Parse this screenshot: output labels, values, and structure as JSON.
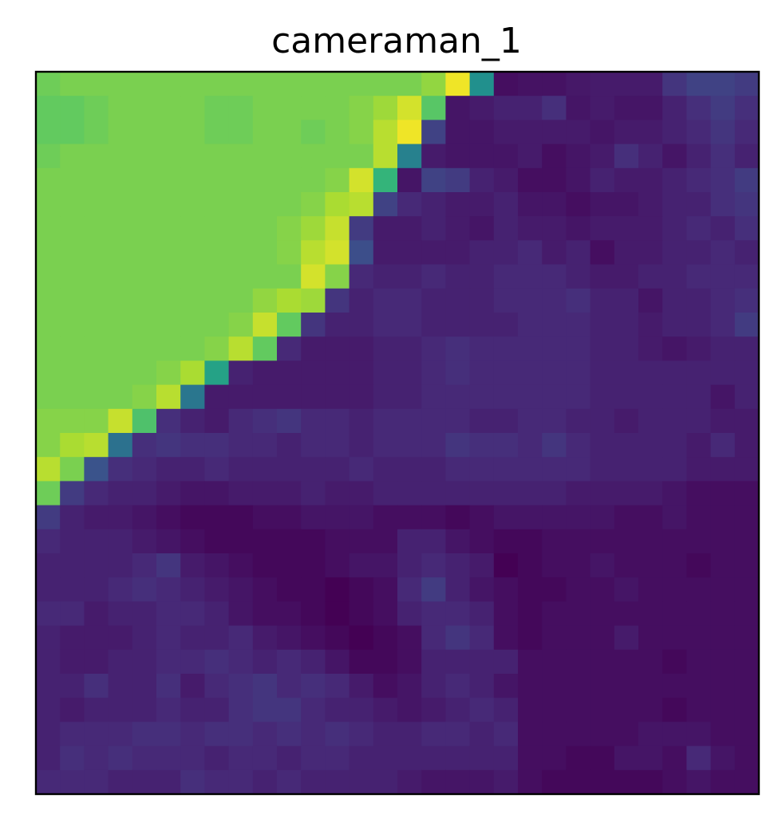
{
  "chart_data": {
    "type": "heatmap",
    "title": "cameraman_1",
    "xlabel": "",
    "ylabel": "",
    "colormap": "viridis",
    "axes_ticks": false,
    "grid": false,
    "vmin": 0,
    "vmax": 1,
    "rows": 30,
    "cols": 30,
    "values": [
      [
        0.78,
        0.8,
        0.8,
        0.8,
        0.8,
        0.8,
        0.8,
        0.8,
        0.8,
        0.8,
        0.8,
        0.8,
        0.8,
        0.8,
        0.8,
        0.8,
        0.84,
        0.98,
        0.5,
        0.04,
        0.05,
        0.05,
        0.07,
        0.08,
        0.08,
        0.08,
        0.16,
        0.2,
        0.2,
        0.18
      ],
      [
        0.76,
        0.76,
        0.78,
        0.8,
        0.8,
        0.8,
        0.8,
        0.78,
        0.78,
        0.8,
        0.8,
        0.8,
        0.8,
        0.82,
        0.86,
        0.94,
        0.74,
        0.06,
        0.08,
        0.1,
        0.1,
        0.14,
        0.06,
        0.08,
        0.06,
        0.06,
        0.1,
        0.14,
        0.18,
        0.14
      ],
      [
        0.76,
        0.76,
        0.78,
        0.8,
        0.8,
        0.8,
        0.8,
        0.78,
        0.78,
        0.8,
        0.8,
        0.78,
        0.8,
        0.82,
        0.9,
        0.98,
        0.2,
        0.06,
        0.06,
        0.08,
        0.08,
        0.08,
        0.08,
        0.06,
        0.08,
        0.08,
        0.1,
        0.12,
        0.16,
        0.12
      ],
      [
        0.78,
        0.8,
        0.8,
        0.8,
        0.8,
        0.8,
        0.8,
        0.8,
        0.8,
        0.8,
        0.8,
        0.8,
        0.8,
        0.8,
        0.9,
        0.44,
        0.08,
        0.06,
        0.06,
        0.06,
        0.08,
        0.04,
        0.06,
        0.08,
        0.14,
        0.1,
        0.06,
        0.1,
        0.14,
        0.1
      ],
      [
        0.8,
        0.8,
        0.8,
        0.8,
        0.8,
        0.8,
        0.8,
        0.8,
        0.8,
        0.8,
        0.8,
        0.8,
        0.82,
        0.94,
        0.66,
        0.06,
        0.2,
        0.18,
        0.1,
        0.08,
        0.04,
        0.04,
        0.06,
        0.1,
        0.08,
        0.08,
        0.1,
        0.12,
        0.14,
        0.18
      ],
      [
        0.8,
        0.8,
        0.8,
        0.8,
        0.8,
        0.8,
        0.8,
        0.8,
        0.8,
        0.8,
        0.8,
        0.82,
        0.88,
        0.9,
        0.2,
        0.12,
        0.1,
        0.08,
        0.08,
        0.1,
        0.06,
        0.06,
        0.04,
        0.06,
        0.06,
        0.08,
        0.1,
        0.1,
        0.14,
        0.16
      ],
      [
        0.8,
        0.8,
        0.8,
        0.8,
        0.8,
        0.8,
        0.8,
        0.8,
        0.8,
        0.8,
        0.82,
        0.86,
        0.92,
        0.18,
        0.08,
        0.08,
        0.1,
        0.08,
        0.06,
        0.1,
        0.08,
        0.08,
        0.06,
        0.08,
        0.08,
        0.08,
        0.1,
        0.12,
        0.1,
        0.14
      ],
      [
        0.8,
        0.8,
        0.8,
        0.8,
        0.8,
        0.8,
        0.8,
        0.8,
        0.8,
        0.8,
        0.82,
        0.9,
        0.94,
        0.24,
        0.08,
        0.08,
        0.08,
        0.08,
        0.1,
        0.1,
        0.12,
        0.08,
        0.1,
        0.04,
        0.08,
        0.08,
        0.1,
        0.1,
        0.12,
        0.1
      ],
      [
        0.8,
        0.8,
        0.8,
        0.8,
        0.8,
        0.8,
        0.8,
        0.8,
        0.8,
        0.8,
        0.8,
        0.94,
        0.82,
        0.12,
        0.1,
        0.1,
        0.12,
        0.1,
        0.1,
        0.12,
        0.12,
        0.12,
        0.1,
        0.08,
        0.08,
        0.1,
        0.1,
        0.12,
        0.12,
        0.12
      ],
      [
        0.8,
        0.8,
        0.8,
        0.8,
        0.8,
        0.8,
        0.8,
        0.8,
        0.8,
        0.84,
        0.88,
        0.86,
        0.16,
        0.1,
        0.12,
        0.12,
        0.1,
        0.1,
        0.1,
        0.12,
        0.12,
        0.12,
        0.14,
        0.1,
        0.1,
        0.06,
        0.1,
        0.1,
        0.12,
        0.14
      ],
      [
        0.8,
        0.8,
        0.8,
        0.8,
        0.8,
        0.8,
        0.8,
        0.8,
        0.82,
        0.92,
        0.76,
        0.16,
        0.1,
        0.1,
        0.12,
        0.12,
        0.1,
        0.1,
        0.1,
        0.1,
        0.12,
        0.12,
        0.12,
        0.1,
        0.1,
        0.08,
        0.1,
        0.1,
        0.12,
        0.18
      ],
      [
        0.8,
        0.8,
        0.8,
        0.8,
        0.8,
        0.8,
        0.8,
        0.82,
        0.9,
        0.76,
        0.12,
        0.08,
        0.08,
        0.08,
        0.1,
        0.1,
        0.12,
        0.14,
        0.12,
        0.12,
        0.12,
        0.12,
        0.12,
        0.1,
        0.1,
        0.08,
        0.06,
        0.08,
        0.1,
        0.1
      ],
      [
        0.8,
        0.8,
        0.8,
        0.8,
        0.8,
        0.82,
        0.88,
        0.58,
        0.1,
        0.08,
        0.08,
        0.08,
        0.08,
        0.08,
        0.1,
        0.1,
        0.12,
        0.14,
        0.12,
        0.12,
        0.12,
        0.12,
        0.12,
        0.1,
        0.1,
        0.1,
        0.1,
        0.1,
        0.1,
        0.1
      ],
      [
        0.8,
        0.8,
        0.8,
        0.8,
        0.82,
        0.9,
        0.4,
        0.08,
        0.08,
        0.08,
        0.08,
        0.08,
        0.08,
        0.08,
        0.1,
        0.1,
        0.12,
        0.12,
        0.12,
        0.12,
        0.12,
        0.12,
        0.12,
        0.1,
        0.1,
        0.1,
        0.1,
        0.1,
        0.06,
        0.1
      ],
      [
        0.82,
        0.82,
        0.82,
        0.92,
        0.72,
        0.14,
        0.1,
        0.08,
        0.12,
        0.14,
        0.16,
        0.12,
        0.12,
        0.1,
        0.12,
        0.12,
        0.12,
        0.12,
        0.1,
        0.1,
        0.12,
        0.12,
        0.1,
        0.1,
        0.08,
        0.1,
        0.1,
        0.1,
        0.08,
        0.08
      ],
      [
        0.82,
        0.88,
        0.9,
        0.38,
        0.14,
        0.16,
        0.14,
        0.14,
        0.12,
        0.12,
        0.1,
        0.12,
        0.12,
        0.1,
        0.12,
        0.12,
        0.12,
        0.16,
        0.14,
        0.14,
        0.12,
        0.16,
        0.12,
        0.1,
        0.1,
        0.1,
        0.1,
        0.08,
        0.12,
        0.08
      ],
      [
        0.9,
        0.8,
        0.26,
        0.14,
        0.12,
        0.1,
        0.1,
        0.12,
        0.1,
        0.1,
        0.1,
        0.1,
        0.1,
        0.12,
        0.1,
        0.1,
        0.1,
        0.12,
        0.12,
        0.12,
        0.12,
        0.12,
        0.12,
        0.1,
        0.1,
        0.1,
        0.1,
        0.08,
        0.08,
        0.08
      ],
      [
        0.78,
        0.18,
        0.12,
        0.1,
        0.1,
        0.08,
        0.06,
        0.06,
        0.08,
        0.08,
        0.08,
        0.1,
        0.08,
        0.08,
        0.1,
        0.1,
        0.1,
        0.1,
        0.1,
        0.1,
        0.1,
        0.1,
        0.08,
        0.08,
        0.08,
        0.08,
        0.06,
        0.04,
        0.04,
        0.04
      ],
      [
        0.18,
        0.1,
        0.08,
        0.08,
        0.06,
        0.04,
        0.02,
        0.02,
        0.02,
        0.04,
        0.04,
        0.06,
        0.06,
        0.06,
        0.04,
        0.04,
        0.04,
        0.02,
        0.04,
        0.06,
        0.06,
        0.06,
        0.06,
        0.06,
        0.04,
        0.04,
        0.06,
        0.04,
        0.04,
        0.04
      ],
      [
        0.12,
        0.1,
        0.1,
        0.1,
        0.08,
        0.06,
        0.04,
        0.02,
        0.02,
        0.02,
        0.02,
        0.02,
        0.04,
        0.04,
        0.04,
        0.1,
        0.1,
        0.06,
        0.04,
        0.02,
        0.02,
        0.04,
        0.04,
        0.04,
        0.04,
        0.04,
        0.04,
        0.04,
        0.04,
        0.04
      ],
      [
        0.1,
        0.1,
        0.1,
        0.1,
        0.12,
        0.16,
        0.08,
        0.06,
        0.04,
        0.02,
        0.02,
        0.02,
        0.04,
        0.06,
        0.06,
        0.1,
        0.12,
        0.1,
        0.08,
        0.0,
        0.02,
        0.04,
        0.04,
        0.06,
        0.04,
        0.04,
        0.04,
        0.02,
        0.04,
        0.04
      ],
      [
        0.1,
        0.1,
        0.1,
        0.12,
        0.14,
        0.12,
        0.1,
        0.08,
        0.06,
        0.04,
        0.02,
        0.02,
        0.0,
        0.02,
        0.04,
        0.12,
        0.18,
        0.1,
        0.06,
        0.04,
        0.02,
        0.02,
        0.04,
        0.04,
        0.06,
        0.04,
        0.04,
        0.04,
        0.04,
        0.04
      ],
      [
        0.12,
        0.12,
        0.08,
        0.1,
        0.1,
        0.12,
        0.12,
        0.1,
        0.06,
        0.04,
        0.04,
        0.02,
        0.0,
        0.02,
        0.04,
        0.1,
        0.12,
        0.12,
        0.1,
        0.04,
        0.02,
        0.04,
        0.04,
        0.04,
        0.04,
        0.04,
        0.04,
        0.04,
        0.04,
        0.04
      ],
      [
        0.1,
        0.08,
        0.08,
        0.08,
        0.1,
        0.12,
        0.1,
        0.1,
        0.12,
        0.08,
        0.06,
        0.04,
        0.02,
        0.0,
        0.02,
        0.04,
        0.12,
        0.16,
        0.12,
        0.04,
        0.02,
        0.04,
        0.04,
        0.04,
        0.08,
        0.04,
        0.04,
        0.04,
        0.04,
        0.04
      ],
      [
        0.1,
        0.08,
        0.08,
        0.1,
        0.1,
        0.12,
        0.12,
        0.14,
        0.12,
        0.1,
        0.12,
        0.1,
        0.06,
        0.02,
        0.02,
        0.04,
        0.1,
        0.1,
        0.1,
        0.1,
        0.04,
        0.04,
        0.04,
        0.04,
        0.04,
        0.04,
        0.02,
        0.04,
        0.04,
        0.04
      ],
      [
        0.1,
        0.1,
        0.14,
        0.1,
        0.1,
        0.14,
        0.08,
        0.12,
        0.14,
        0.16,
        0.12,
        0.14,
        0.12,
        0.08,
        0.04,
        0.06,
        0.1,
        0.12,
        0.1,
        0.06,
        0.04,
        0.04,
        0.04,
        0.04,
        0.04,
        0.04,
        0.04,
        0.04,
        0.04,
        0.04
      ],
      [
        0.1,
        0.08,
        0.1,
        0.1,
        0.1,
        0.12,
        0.1,
        0.1,
        0.14,
        0.16,
        0.16,
        0.12,
        0.1,
        0.1,
        0.08,
        0.06,
        0.08,
        0.1,
        0.12,
        0.1,
        0.04,
        0.04,
        0.04,
        0.04,
        0.04,
        0.04,
        0.02,
        0.04,
        0.04,
        0.04
      ],
      [
        0.1,
        0.12,
        0.12,
        0.12,
        0.14,
        0.14,
        0.12,
        0.14,
        0.14,
        0.12,
        0.14,
        0.12,
        0.14,
        0.12,
        0.1,
        0.1,
        0.12,
        0.12,
        0.1,
        0.12,
        0.04,
        0.04,
        0.04,
        0.04,
        0.04,
        0.06,
        0.06,
        0.06,
        0.04,
        0.04
      ],
      [
        0.1,
        0.14,
        0.12,
        0.14,
        0.12,
        0.12,
        0.12,
        0.1,
        0.12,
        0.12,
        0.1,
        0.12,
        0.12,
        0.1,
        0.1,
        0.1,
        0.1,
        0.1,
        0.1,
        0.1,
        0.04,
        0.04,
        0.02,
        0.02,
        0.06,
        0.06,
        0.04,
        0.12,
        0.06,
        0.04
      ],
      [
        0.12,
        0.12,
        0.12,
        0.1,
        0.1,
        0.1,
        0.14,
        0.12,
        0.12,
        0.1,
        0.12,
        0.1,
        0.1,
        0.1,
        0.1,
        0.08,
        0.06,
        0.06,
        0.06,
        0.08,
        0.04,
        0.02,
        0.02,
        0.02,
        0.02,
        0.02,
        0.04,
        0.06,
        0.04,
        0.04
      ]
    ]
  }
}
